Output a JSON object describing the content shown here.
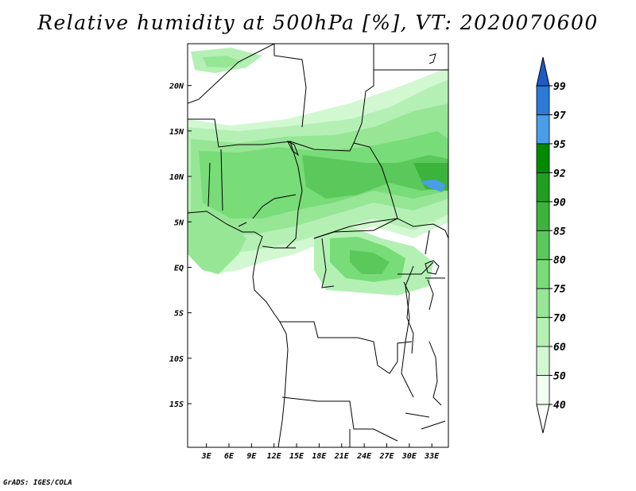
{
  "title": "Relative humidity at 500hPa [%], VT: 2020070600",
  "credit": "GrADS: IGES/COLA",
  "map": {
    "lon_labels": [
      "3E",
      "6E",
      "9E",
      "12E",
      "15E",
      "18E",
      "21E",
      "24E",
      "27E",
      "30E",
      "33E"
    ],
    "lat_labels": [
      "20N",
      "15N",
      "10N",
      "5N",
      "EQ",
      "5S",
      "10S",
      "15S"
    ],
    "lon_values": [
      3,
      6,
      9,
      12,
      15,
      18,
      21,
      24,
      27,
      30,
      33
    ],
    "lat_values": [
      20,
      15,
      10,
      5,
      0,
      -5,
      -10,
      -15
    ],
    "lon_range": [
      0.5,
      35.2
    ],
    "lat_range": [
      -19.8,
      24.6
    ]
  },
  "colorbar": {
    "labels": [
      "40",
      "50",
      "60",
      "70",
      "75",
      "80",
      "85",
      "90",
      "92",
      "95",
      "97",
      "99"
    ],
    "colors": [
      "#f0fff0",
      "#d2f8d2",
      "#b4f0b4",
      "#96e696",
      "#78dc78",
      "#5ac85a",
      "#3cb43c",
      "#1ea01e",
      "#008c00",
      "#4a9de8",
      "#2a7ad8",
      "#1e5bc8",
      "#1a3fa8"
    ]
  }
}
